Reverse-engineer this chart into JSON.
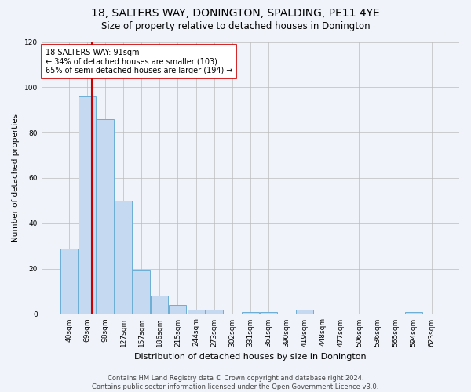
{
  "title": "18, SALTERS WAY, DONINGTON, SPALDING, PE11 4YE",
  "subtitle": "Size of property relative to detached houses in Donington",
  "xlabel": "Distribution of detached houses by size in Donington",
  "ylabel": "Number of detached properties",
  "categories": [
    "40sqm",
    "69sqm",
    "98sqm",
    "127sqm",
    "157sqm",
    "186sqm",
    "215sqm",
    "244sqm",
    "273sqm",
    "302sqm",
    "331sqm",
    "361sqm",
    "390sqm",
    "419sqm",
    "448sqm",
    "477sqm",
    "506sqm",
    "536sqm",
    "565sqm",
    "594sqm",
    "623sqm"
  ],
  "values": [
    29,
    96,
    86,
    50,
    19,
    8,
    4,
    2,
    2,
    0,
    1,
    1,
    0,
    2,
    0,
    0,
    0,
    0,
    0,
    1,
    0
  ],
  "bar_color": "#c5d9f0",
  "bar_edge_color": "#6baed6",
  "bar_edge_width": 0.7,
  "property_line_color": "#cc0000",
  "annotation_line1": "18 SALTERS WAY: 91sqm",
  "annotation_line2": "← 34% of detached houses are smaller (103)",
  "annotation_line3": "65% of semi-detached houses are larger (194) →",
  "annotation_box_color": "#ffffff",
  "annotation_box_edge_color": "#cc0000",
  "ylim": [
    0,
    120
  ],
  "yticks": [
    0,
    20,
    40,
    60,
    80,
    100,
    120
  ],
  "background_color": "#f0f4fa",
  "grid_color": "#bbbbbb",
  "footer_line1": "Contains HM Land Registry data © Crown copyright and database right 2024.",
  "footer_line2": "Contains public sector information licensed under the Open Government Licence v3.0.",
  "title_fontsize": 10,
  "subtitle_fontsize": 8.5,
  "xlabel_fontsize": 8,
  "ylabel_fontsize": 7.5,
  "tick_fontsize": 6.5,
  "annotation_fontsize": 7,
  "footer_fontsize": 6
}
